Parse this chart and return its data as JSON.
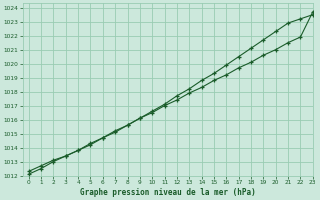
{
  "title": "Graphe pression niveau de la mer (hPa)",
  "bg_color": "#cce8dc",
  "grid_color": "#99ccb3",
  "line_color": "#1a5c2a",
  "xlim": [
    -0.5,
    23
  ],
  "ylim": [
    1012,
    1024.3
  ],
  "xticks": [
    0,
    1,
    2,
    3,
    4,
    5,
    6,
    7,
    8,
    9,
    10,
    11,
    12,
    13,
    14,
    15,
    16,
    17,
    18,
    19,
    20,
    21,
    22,
    23
  ],
  "yticks": [
    1012,
    1013,
    1014,
    1015,
    1016,
    1017,
    1018,
    1019,
    1020,
    1021,
    1022,
    1023,
    1024
  ],
  "line1_x": [
    0,
    1,
    2,
    3,
    4,
    5,
    6,
    7,
    8,
    9,
    10,
    11,
    12,
    13,
    14,
    15,
    16,
    17,
    18,
    19,
    20,
    21,
    22,
    23
  ],
  "line1_y": [
    1012.1,
    1012.5,
    1013.0,
    1013.4,
    1013.8,
    1014.3,
    1014.7,
    1015.2,
    1015.6,
    1016.1,
    1016.5,
    1017.0,
    1017.4,
    1017.9,
    1018.3,
    1018.8,
    1019.2,
    1019.7,
    1020.1,
    1020.6,
    1021.0,
    1021.5,
    1021.9,
    1023.7
  ],
  "line2_x": [
    0,
    1,
    2,
    3,
    4,
    5,
    6,
    7,
    8,
    9,
    10,
    11,
    12,
    13,
    14,
    15,
    16,
    17,
    18,
    19,
    20,
    21,
    22,
    23
  ],
  "line2_y": [
    1012.3,
    1012.7,
    1013.1,
    1013.4,
    1013.8,
    1014.2,
    1014.7,
    1015.1,
    1015.6,
    1016.1,
    1016.6,
    1017.1,
    1017.7,
    1018.2,
    1018.8,
    1019.3,
    1019.9,
    1020.5,
    1021.1,
    1021.7,
    1022.3,
    1022.9,
    1023.2,
    1023.5
  ]
}
